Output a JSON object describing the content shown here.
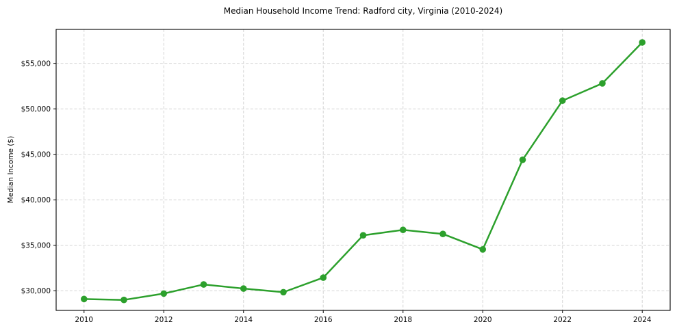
{
  "chart_data": {
    "type": "line",
    "title": "Median Household Income Trend: Radford city, Virginia (2010-2024)",
    "xlabel": "",
    "ylabel": "Median Income ($)",
    "series_name": "Median Household Income",
    "x": [
      2010,
      2011,
      2012,
      2013,
      2014,
      2015,
      2016,
      2017,
      2018,
      2019,
      2020,
      2021,
      2022,
      2023,
      2024
    ],
    "values": [
      29100,
      29000,
      29700,
      30700,
      30250,
      29850,
      31450,
      36100,
      36700,
      36250,
      34550,
      44400,
      50900,
      52800,
      57300
    ],
    "xlim": [
      2009.3,
      2024.7
    ],
    "ylim": [
      27850,
      58730
    ],
    "xticks": [
      2010,
      2012,
      2014,
      2016,
      2018,
      2020,
      2022,
      2024
    ],
    "xtick_labels": [
      "2010",
      "2012",
      "2014",
      "2016",
      "2018",
      "2020",
      "2022",
      "2024"
    ],
    "yticks": [
      30000,
      35000,
      40000,
      45000,
      50000,
      55000
    ],
    "ytick_labels": [
      "$30,000",
      "$35,000",
      "$40,000",
      "$45,000",
      "$50,000",
      "$55,000"
    ],
    "grid": true,
    "grid_style": "dashed",
    "legend_position": "none",
    "colors": {
      "line": "#2ca02c",
      "marker": "#2ca02c",
      "grid": "#d4d4d4",
      "spine": "#000000",
      "text": "#000000"
    }
  }
}
